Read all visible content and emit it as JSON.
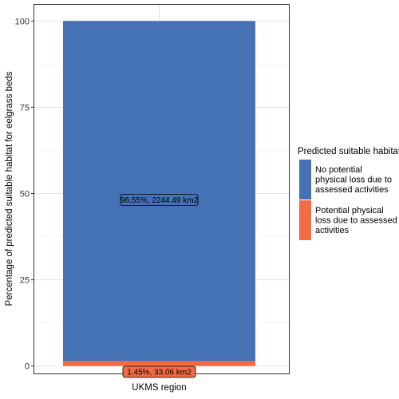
{
  "chart_data": {
    "type": "bar",
    "stacked": true,
    "categories": [
      "UKMS region"
    ],
    "xlabel": "UKMS region",
    "ylabel": "Percentage of predicted suitable habitat for eelgrass beds",
    "ylim": [
      0,
      100
    ],
    "yticks": [
      0,
      25,
      50,
      75,
      100
    ],
    "grid": true,
    "legend": {
      "title": "Predicted suitable habitat",
      "position": "right"
    },
    "series": [
      {
        "name": "No potential physical loss due to assessed activities",
        "legend_lines": [
          "No potential",
          "physical loss due to",
          "assessed activities"
        ],
        "values": [
          98.55
        ],
        "label": "98.55%, 2244.49 km2",
        "color": "#4472b4"
      },
      {
        "name": "Potential physical loss due to assessed activities",
        "legend_lines": [
          "Potential physical",
          "loss due to assessed",
          "activities"
        ],
        "values": [
          1.45
        ],
        "label": "1.45%,  33.06 km2",
        "color": "#f26b43"
      }
    ]
  }
}
